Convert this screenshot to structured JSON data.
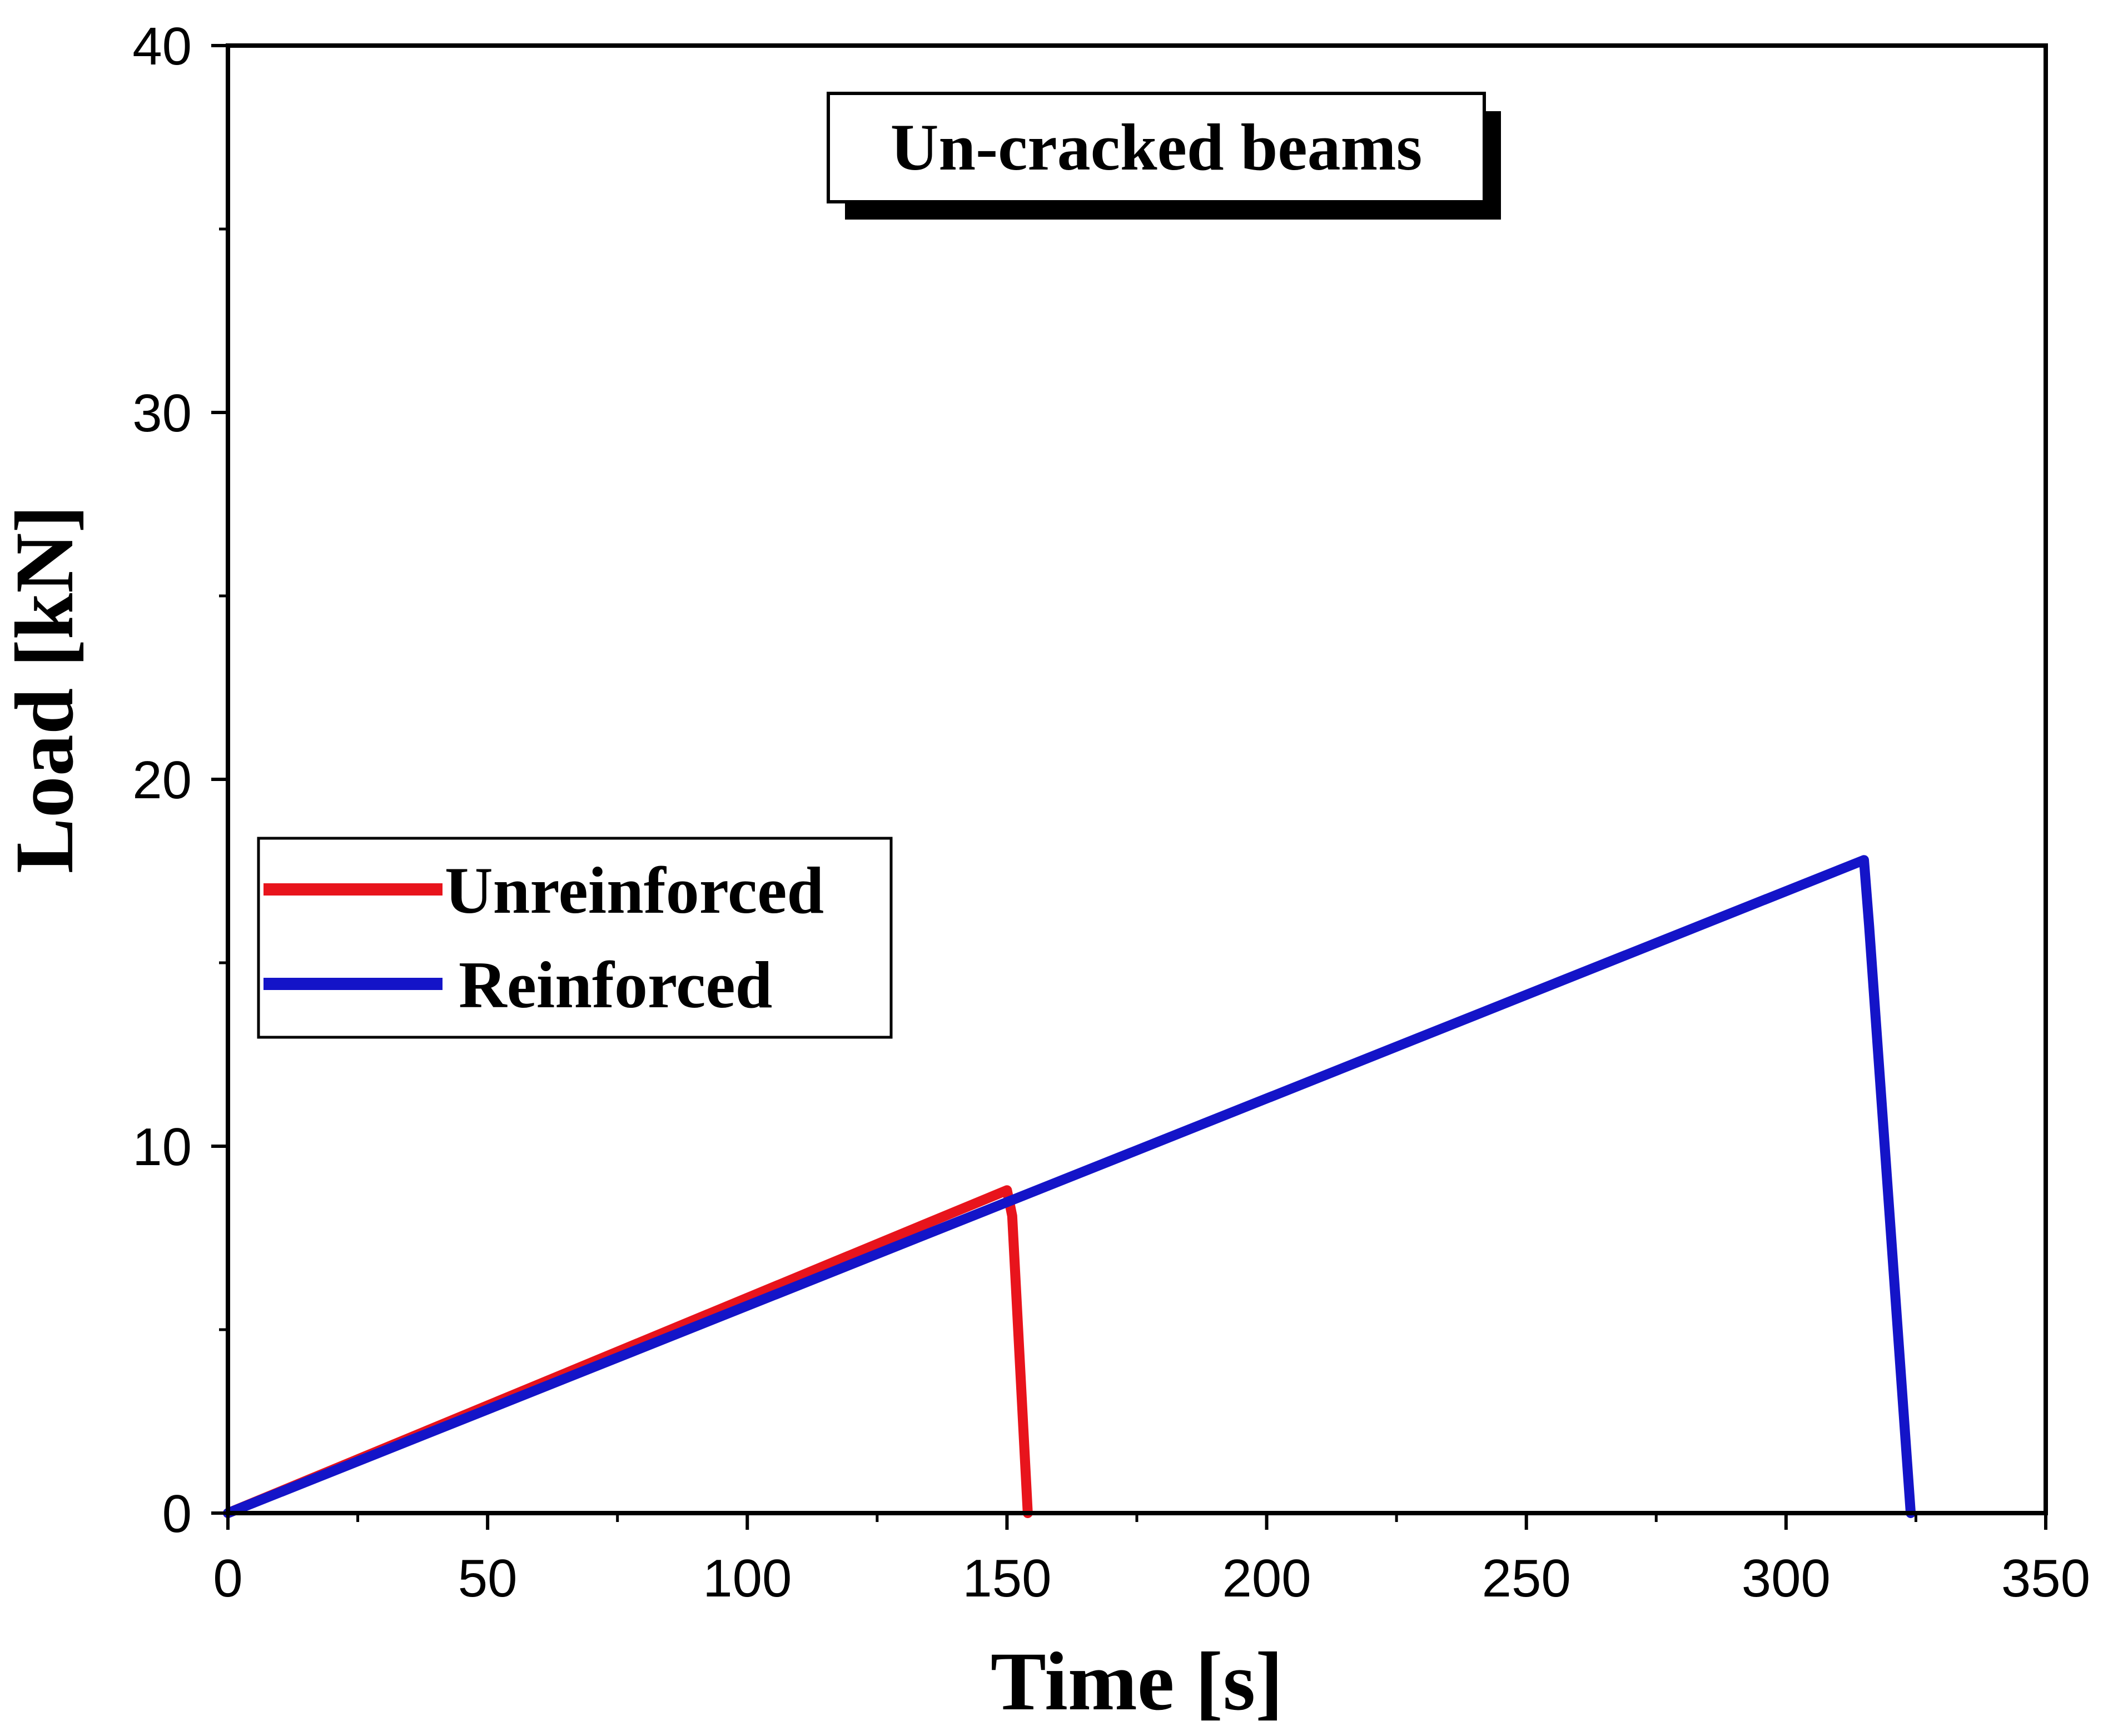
{
  "chart_data": {
    "type": "line",
    "title": "",
    "annotation": "Un-cracked beams",
    "xlabel": "Time [s]",
    "ylabel": "Load [kN]",
    "xlim": [
      0,
      350
    ],
    "ylim": [
      0,
      40
    ],
    "x_ticks": [
      0,
      50,
      100,
      150,
      200,
      250,
      300,
      350
    ],
    "y_ticks": [
      0,
      10,
      20,
      30,
      40
    ],
    "x_minor_step": 25,
    "y_minor_step": 5,
    "grid": false,
    "legend_position": "middle-left",
    "series": [
      {
        "name": "Unreinforced",
        "color": "#e8141c",
        "x": [
          0,
          150,
          151,
          154
        ],
        "y": [
          0,
          8.8,
          8.1,
          0
        ]
      },
      {
        "name": "Reinforced",
        "color": "#1414c8",
        "x": [
          0,
          315,
          316,
          324
        ],
        "y": [
          0,
          17.8,
          16.0,
          0
        ]
      }
    ]
  }
}
